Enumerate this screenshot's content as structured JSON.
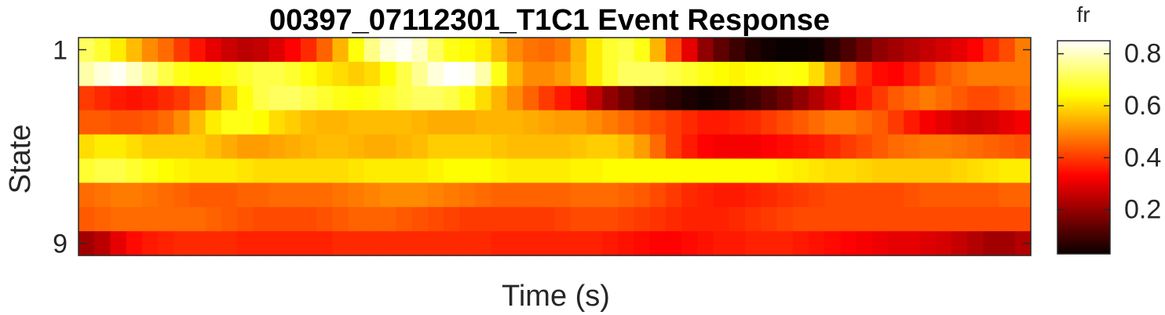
{
  "chart_data": {
    "type": "heatmap",
    "title": "00397_07112301_T1C1 Event Response",
    "xlabel": "Time (s)",
    "ylabel": "State",
    "y_tick_labels": [
      "1",
      "9"
    ],
    "x_tick_labels": [],
    "colorbar": {
      "label": "fr",
      "colormap": "hot",
      "clim": [
        0.03,
        0.85
      ],
      "ticks": [
        0.2,
        0.4,
        0.6,
        0.8
      ],
      "tick_labels": [
        "0.2",
        "0.4",
        "0.6",
        "0.8"
      ]
    },
    "rows": [
      {
        "state": 1,
        "values": [
          0.72,
          0.68,
          0.62,
          0.56,
          0.5,
          0.46,
          0.4,
          0.35,
          0.3,
          0.27,
          0.25,
          0.26,
          0.29,
          0.33,
          0.38,
          0.45,
          0.55,
          0.65,
          0.75,
          0.82,
          0.84,
          0.8,
          0.72,
          0.66,
          0.64,
          0.62,
          0.56,
          0.5,
          0.47,
          0.46,
          0.48,
          0.55,
          0.62,
          0.68,
          0.7,
          0.66,
          0.55,
          0.42,
          0.3,
          0.2,
          0.14,
          0.1,
          0.07,
          0.05,
          0.04,
          0.04,
          0.05,
          0.08,
          0.12,
          0.16,
          0.2,
          0.22,
          0.24,
          0.26,
          0.28,
          0.3,
          0.33,
          0.38,
          0.42,
          0.48
        ]
      },
      {
        "state": 2,
        "values": [
          0.78,
          0.82,
          0.84,
          0.8,
          0.75,
          0.7,
          0.66,
          0.64,
          0.64,
          0.66,
          0.68,
          0.7,
          0.7,
          0.68,
          0.65,
          0.62,
          0.6,
          0.58,
          0.6,
          0.64,
          0.7,
          0.76,
          0.82,
          0.85,
          0.84,
          0.78,
          0.66,
          0.55,
          0.5,
          0.5,
          0.52,
          0.56,
          0.62,
          0.68,
          0.72,
          0.72,
          0.72,
          0.7,
          0.68,
          0.66,
          0.64,
          0.63,
          0.64,
          0.65,
          0.66,
          0.65,
          0.6,
          0.52,
          0.44,
          0.38,
          0.34,
          0.33,
          0.36,
          0.4,
          0.44,
          0.46,
          0.48,
          0.48,
          0.48,
          0.48
        ]
      },
      {
        "state": 3,
        "values": [
          0.4,
          0.38,
          0.36,
          0.35,
          0.36,
          0.38,
          0.4,
          0.44,
          0.5,
          0.58,
          0.65,
          0.7,
          0.72,
          0.72,
          0.7,
          0.68,
          0.66,
          0.65,
          0.66,
          0.68,
          0.7,
          0.72,
          0.72,
          0.7,
          0.66,
          0.6,
          0.55,
          0.5,
          0.45,
          0.4,
          0.36,
          0.32,
          0.26,
          0.2,
          0.16,
          0.12,
          0.1,
          0.08,
          0.06,
          0.05,
          0.06,
          0.08,
          0.1,
          0.13,
          0.16,
          0.2,
          0.24,
          0.28,
          0.32,
          0.36,
          0.4,
          0.44,
          0.46,
          0.48,
          0.46,
          0.44,
          0.42,
          0.42,
          0.44,
          0.46
        ]
      },
      {
        "state": 4,
        "values": [
          0.44,
          0.44,
          0.43,
          0.43,
          0.44,
          0.46,
          0.5,
          0.56,
          0.62,
          0.66,
          0.66,
          0.64,
          0.6,
          0.58,
          0.56,
          0.55,
          0.55,
          0.56,
          0.56,
          0.56,
          0.56,
          0.55,
          0.54,
          0.54,
          0.54,
          0.55,
          0.55,
          0.55,
          0.54,
          0.53,
          0.52,
          0.52,
          0.5,
          0.48,
          0.46,
          0.44,
          0.42,
          0.4,
          0.38,
          0.36,
          0.36,
          0.37,
          0.38,
          0.4,
          0.42,
          0.44,
          0.46,
          0.48,
          0.48,
          0.46,
          0.44,
          0.4,
          0.36,
          0.32,
          0.3,
          0.28,
          0.27,
          0.28,
          0.3,
          0.32
        ]
      },
      {
        "state": 5,
        "values": [
          0.6,
          0.62,
          0.62,
          0.6,
          0.58,
          0.58,
          0.58,
          0.58,
          0.56,
          0.54,
          0.52,
          0.52,
          0.53,
          0.54,
          0.55,
          0.56,
          0.56,
          0.55,
          0.54,
          0.54,
          0.55,
          0.56,
          0.58,
          0.58,
          0.58,
          0.58,
          0.57,
          0.56,
          0.56,
          0.56,
          0.56,
          0.57,
          0.58,
          0.58,
          0.56,
          0.52,
          0.46,
          0.4,
          0.36,
          0.33,
          0.32,
          0.32,
          0.32,
          0.33,
          0.34,
          0.35,
          0.36,
          0.38,
          0.4,
          0.42,
          0.44,
          0.46,
          0.47,
          0.48,
          0.48,
          0.47,
          0.46,
          0.45,
          0.44,
          0.43
        ]
      },
      {
        "state": 6,
        "values": [
          0.68,
          0.7,
          0.7,
          0.68,
          0.66,
          0.64,
          0.63,
          0.62,
          0.62,
          0.62,
          0.61,
          0.6,
          0.6,
          0.6,
          0.6,
          0.6,
          0.6,
          0.61,
          0.62,
          0.62,
          0.62,
          0.62,
          0.63,
          0.64,
          0.64,
          0.64,
          0.63,
          0.62,
          0.62,
          0.62,
          0.62,
          0.63,
          0.63,
          0.64,
          0.64,
          0.64,
          0.64,
          0.64,
          0.64,
          0.64,
          0.64,
          0.64,
          0.64,
          0.64,
          0.63,
          0.62,
          0.61,
          0.6,
          0.6,
          0.59,
          0.58,
          0.58,
          0.58,
          0.58,
          0.58,
          0.59,
          0.6,
          0.61,
          0.62,
          0.62
        ]
      },
      {
        "state": 7,
        "values": [
          0.46,
          0.47,
          0.48,
          0.48,
          0.47,
          0.46,
          0.45,
          0.44,
          0.44,
          0.44,
          0.45,
          0.45,
          0.46,
          0.46,
          0.46,
          0.46,
          0.47,
          0.48,
          0.49,
          0.5,
          0.5,
          0.5,
          0.49,
          0.48,
          0.47,
          0.46,
          0.45,
          0.45,
          0.45,
          0.45,
          0.45,
          0.46,
          0.46,
          0.46,
          0.45,
          0.44,
          0.42,
          0.4,
          0.38,
          0.37,
          0.36,
          0.36,
          0.37,
          0.38,
          0.39,
          0.4,
          0.41,
          0.42,
          0.42,
          0.42,
          0.42,
          0.42,
          0.43,
          0.44,
          0.44,
          0.44,
          0.44,
          0.44,
          0.45,
          0.45
        ]
      },
      {
        "state": 8,
        "values": [
          0.44,
          0.45,
          0.46,
          0.46,
          0.46,
          0.46,
          0.46,
          0.46,
          0.45,
          0.44,
          0.43,
          0.42,
          0.42,
          0.42,
          0.42,
          0.43,
          0.44,
          0.45,
          0.45,
          0.45,
          0.44,
          0.43,
          0.42,
          0.41,
          0.4,
          0.4,
          0.4,
          0.4,
          0.4,
          0.4,
          0.41,
          0.42,
          0.42,
          0.42,
          0.41,
          0.4,
          0.39,
          0.38,
          0.37,
          0.37,
          0.37,
          0.38,
          0.39,
          0.4,
          0.41,
          0.42,
          0.42,
          0.42,
          0.42,
          0.42,
          0.42,
          0.42,
          0.42,
          0.42,
          0.42,
          0.42,
          0.42,
          0.42,
          0.42,
          0.42
        ]
      },
      {
        "state": 9,
        "values": [
          0.22,
          0.25,
          0.3,
          0.34,
          0.36,
          0.37,
          0.38,
          0.38,
          0.38,
          0.38,
          0.37,
          0.37,
          0.37,
          0.37,
          0.37,
          0.37,
          0.38,
          0.38,
          0.38,
          0.38,
          0.38,
          0.38,
          0.38,
          0.38,
          0.38,
          0.38,
          0.37,
          0.37,
          0.37,
          0.37,
          0.37,
          0.37,
          0.37,
          0.36,
          0.35,
          0.34,
          0.33,
          0.33,
          0.34,
          0.35,
          0.36,
          0.36,
          0.37,
          0.37,
          0.37,
          0.36,
          0.35,
          0.34,
          0.33,
          0.32,
          0.31,
          0.3,
          0.3,
          0.29,
          0.28,
          0.26,
          0.24,
          0.22,
          0.22,
          0.24
        ]
      }
    ]
  }
}
